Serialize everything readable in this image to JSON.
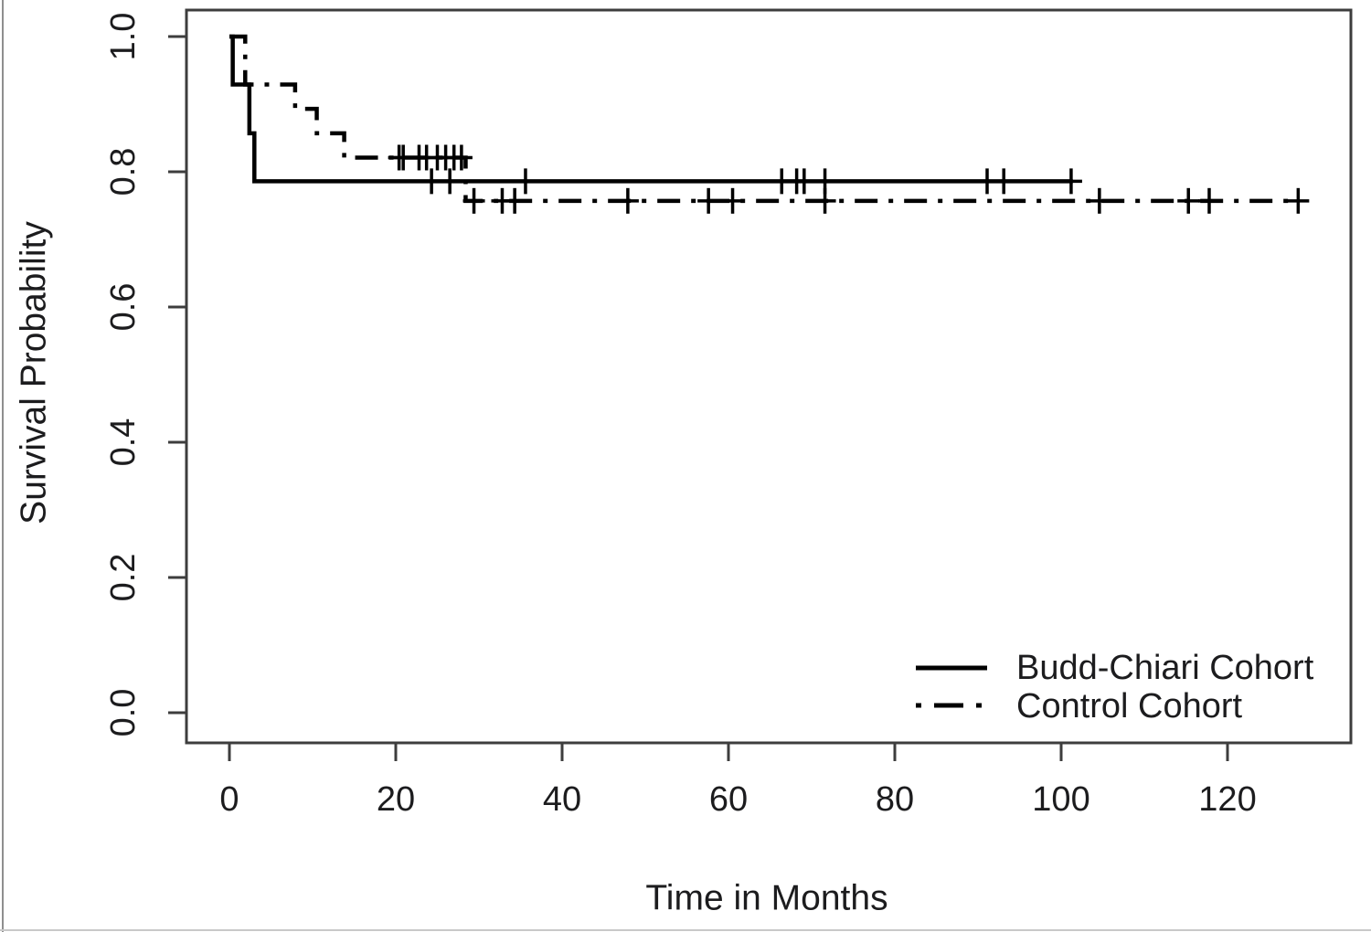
{
  "figure": {
    "xlabel": "Time in Months",
    "ylabel": "Survival Probability"
  },
  "chart_data": {
    "type": "line",
    "subtype": "kaplan-meier-step-function",
    "title": "",
    "xlabel": "Time in Months",
    "ylabel": "Survival Probability",
    "xlim": [
      0,
      130
    ],
    "ylim": [
      0.0,
      1.0
    ],
    "x_ticks": [
      0,
      20,
      40,
      60,
      80,
      100,
      120
    ],
    "x_tick_labels": [
      "0",
      "20",
      "40",
      "60",
      "80",
      "100",
      "120"
    ],
    "y_ticks": [
      0.0,
      0.2,
      0.4,
      0.6,
      0.8,
      1.0
    ],
    "y_tick_labels": [
      "0.0",
      "0.2",
      "0.4",
      "0.6",
      "0.8",
      "1.0"
    ],
    "grid": false,
    "legend_position": "bottom-right",
    "line_color": "#000000",
    "series": [
      {
        "name": "Budd-Chiari Cohort",
        "line_style": "solid",
        "steps": [
          [
            0,
            1.0
          ],
          [
            0.4,
            0.929
          ],
          [
            2.4,
            0.857
          ],
          [
            3.0,
            0.786
          ]
        ],
        "end_time": 101.4,
        "censor_marks": [
          [
            24.3,
            0.786
          ],
          [
            26.5,
            0.786
          ],
          [
            35.6,
            0.786
          ],
          [
            66.4,
            0.786
          ],
          [
            68.2,
            0.786
          ],
          [
            69.1,
            0.786
          ],
          [
            71.6,
            0.786
          ],
          [
            91.1,
            0.786
          ],
          [
            93.1,
            0.786
          ],
          [
            101.2,
            0.786
          ]
        ]
      },
      {
        "name": "Control Cohort",
        "line_style": "dashdot",
        "steps": [
          [
            0,
            1.0
          ],
          [
            1.9,
            0.929
          ],
          [
            7.9,
            0.893
          ],
          [
            10.5,
            0.857
          ],
          [
            13.8,
            0.821
          ],
          [
            28.4,
            0.757
          ]
        ],
        "end_time": 128.6,
        "censor_marks": [
          [
            20.4,
            0.821
          ],
          [
            20.9,
            0.821
          ],
          [
            22.8,
            0.821
          ],
          [
            23.7,
            0.821
          ],
          [
            25.0,
            0.821
          ],
          [
            26.0,
            0.821
          ],
          [
            27.0,
            0.821
          ],
          [
            27.9,
            0.821
          ],
          [
            29.4,
            0.757
          ],
          [
            32.8,
            0.757
          ],
          [
            34.3,
            0.757
          ],
          [
            47.9,
            0.757
          ],
          [
            57.6,
            0.757
          ],
          [
            60.5,
            0.757
          ],
          [
            71.6,
            0.757
          ],
          [
            104.6,
            0.757
          ],
          [
            115.3,
            0.757
          ],
          [
            117.8,
            0.757
          ],
          [
            128.5,
            0.757
          ]
        ]
      }
    ]
  }
}
